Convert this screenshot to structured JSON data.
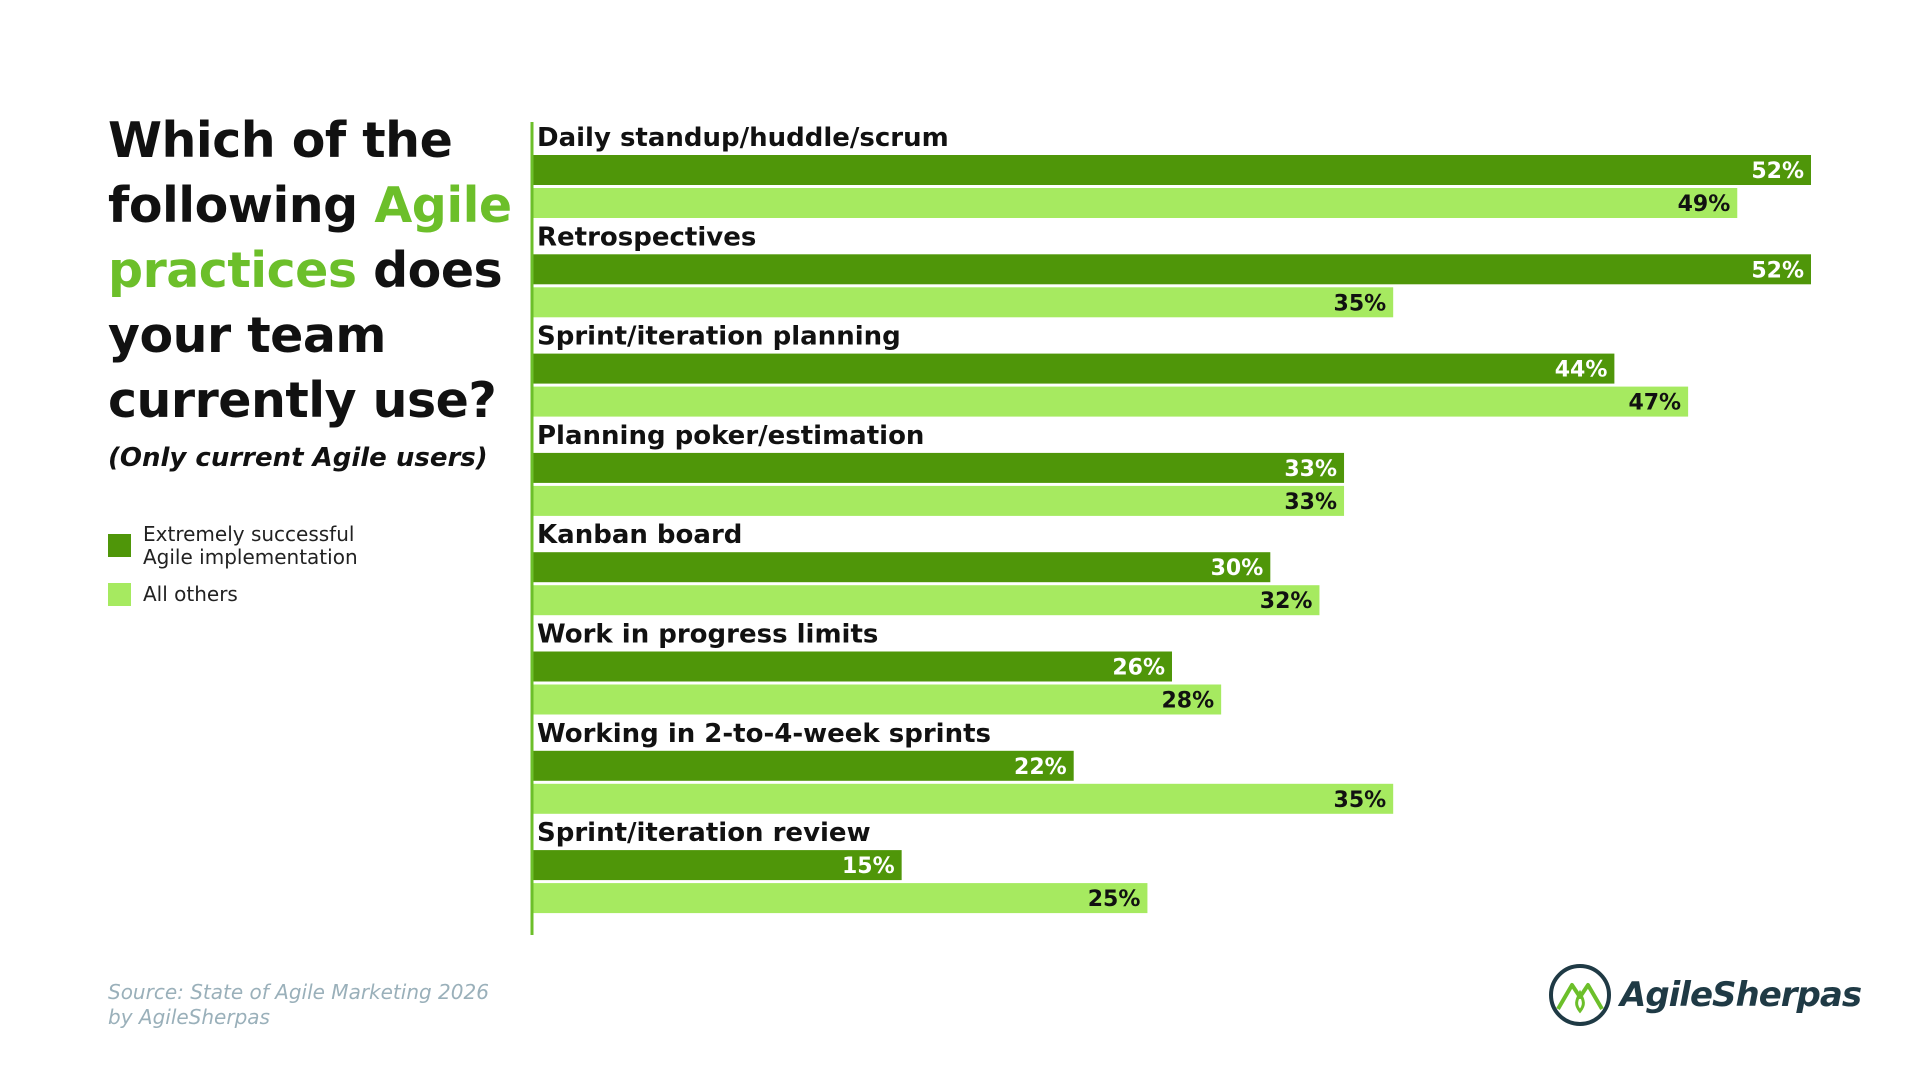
{
  "title": {
    "part1": "Which of the following ",
    "accent": "Agile practices",
    "part2": " does your team currently use?"
  },
  "subtitle": "(Only current Agile users)",
  "legend": [
    {
      "label": "Extremely successful Agile implementation",
      "color": "#4f9609"
    },
    {
      "label": "All others",
      "color": "#a6ea60"
    }
  ],
  "source": {
    "line1": "Source: State of Agile Marketing 2026",
    "line2": "by AgileSherpas"
  },
  "logo": {
    "text": "AgileSherpas"
  },
  "colors": {
    "accent": "#6cbf2a",
    "dark": "#4f9609",
    "light": "#a6ea60",
    "axis": "#6cbf2a"
  },
  "chart_data": {
    "type": "bar",
    "orientation": "horizontal",
    "unit": "%",
    "xlim": [
      0,
      52
    ],
    "categories": [
      "Daily standup/huddle/scrum",
      "Retrospectives",
      "Sprint/iteration planning",
      "Planning poker/estimation",
      "Kanban board",
      "Work in progress limits",
      "Working in 2-to-4-week sprints",
      "Sprint/iteration review"
    ],
    "series": [
      {
        "name": "Extremely successful Agile implementation",
        "values": [
          52,
          52,
          44,
          33,
          30,
          26,
          22,
          15
        ]
      },
      {
        "name": "All others",
        "values": [
          49,
          35,
          47,
          33,
          32,
          28,
          35,
          25
        ]
      }
    ]
  }
}
